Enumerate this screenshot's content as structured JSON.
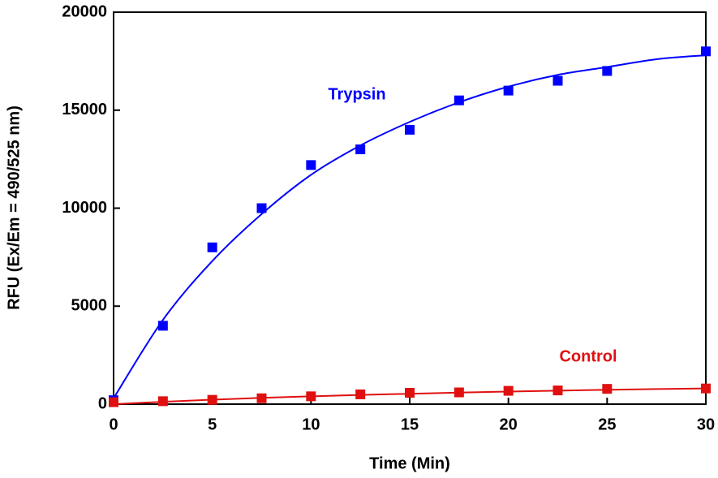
{
  "chart_data": {
    "type": "scatter",
    "x_label": "Time (Min)",
    "y_label": "RFU (Ex/Em = 490/525 nm)",
    "xlim": [
      0,
      30
    ],
    "xticks": [
      0,
      5,
      10,
      15,
      20,
      25,
      30
    ],
    "ylim": [
      0,
      20000
    ],
    "yticks": [
      0,
      5000,
      10000,
      15000,
      20000
    ],
    "grid": false,
    "series": [
      {
        "name": "Trypsin",
        "color": "#0000ff",
        "x": [
          0,
          2.5,
          5,
          7.5,
          10,
          12.5,
          15,
          17.5,
          20,
          22.5,
          25,
          30
        ],
        "values": [
          200,
          4000,
          8000,
          10000,
          12200,
          13000,
          14000,
          15500,
          16000,
          16500,
          17000,
          18000
        ],
        "fit_x": [
          0,
          2.5,
          5,
          7.5,
          10,
          12.5,
          15,
          17.5,
          20,
          22.5,
          25,
          27.5,
          30
        ],
        "fit_values": [
          300,
          4300,
          7300,
          9700,
          11700,
          13200,
          14400,
          15400,
          16200,
          16800,
          17200,
          17600,
          17800
        ]
      },
      {
        "name": "Control",
        "color": "#e01010",
        "x": [
          0,
          2.5,
          5,
          7.5,
          10,
          12.5,
          15,
          17.5,
          20,
          22.5,
          25,
          30
        ],
        "values": [
          100,
          150,
          220,
          300,
          400,
          500,
          580,
          600,
          680,
          700,
          780,
          800
        ],
        "fit_x": [
          0,
          2.5,
          5,
          7.5,
          10,
          12.5,
          15,
          17.5,
          20,
          22.5,
          25,
          27.5,
          30
        ],
        "fit_values": [
          0,
          120,
          230,
          320,
          400,
          470,
          530,
          590,
          640,
          690,
          730,
          770,
          800
        ]
      }
    ]
  }
}
